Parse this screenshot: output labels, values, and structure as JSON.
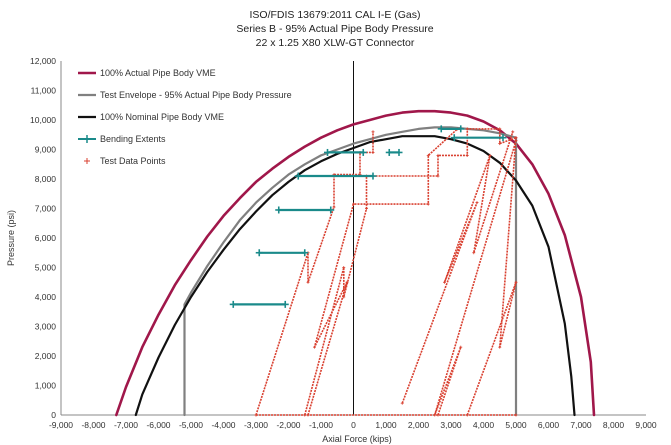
{
  "chart_data": {
    "type": "line",
    "title": "ISO/FDIS 13679:2011 CAL I-E (Gas)",
    "subtitle": "Series B - 95% Actual Pipe Body Pressure",
    "subtitle2": "22 x 1.25 X80 XLW-GT Connector",
    "xlabel": "Axial Force (kips)",
    "ylabel": "Pressure (psi)",
    "xlim": [
      -9000,
      9000
    ],
    "ylim": [
      0,
      12000
    ],
    "x_ticks": [
      "-9,000",
      "-8,000",
      "-7,000",
      "-6,000",
      "-5,000",
      "-4,000",
      "-3,000",
      "-2,000",
      "-1,000",
      "0",
      "1,000",
      "2,000",
      "3,000",
      "4,000",
      "5,000",
      "6,000",
      "7,000",
      "8,000",
      "9,000"
    ],
    "y_ticks": [
      "0",
      "1,000",
      "2,000",
      "3,000",
      "4,000",
      "5,000",
      "6,000",
      "7,000",
      "8,000",
      "9,000",
      "10,000",
      "11,000",
      "12,000"
    ],
    "grid": false,
    "legend_position": "top-left",
    "series": [
      {
        "name": "100% Actual Pipe Body VME",
        "color": "#a0174a",
        "x": [
          -7300,
          -7000,
          -6500,
          -6000,
          -5500,
          -5000,
          -4500,
          -4000,
          -3500,
          -3000,
          -2500,
          -2000,
          -1500,
          -1000,
          -500,
          0,
          500,
          1000,
          1500,
          2000,
          2500,
          3000,
          3500,
          4000,
          4500,
          5000,
          5500,
          6000,
          6500,
          7000,
          7300,
          7400
        ],
        "y": [
          0,
          950,
          2300,
          3400,
          4400,
          5250,
          6050,
          6750,
          7350,
          7900,
          8350,
          8750,
          9100,
          9400,
          9650,
          9850,
          10000,
          10150,
          10250,
          10300,
          10300,
          10250,
          10150,
          9950,
          9650,
          9200,
          8500,
          7500,
          6100,
          4000,
          1800,
          0
        ]
      },
      {
        "name": "Test Envelope - 95% Actual Pipe Body Pressure",
        "color": "#808080",
        "x": [
          -5200,
          -5200,
          -5000,
          -4500,
          -4000,
          -3500,
          -3000,
          -2500,
          -2000,
          -1500,
          -1000,
          -500,
          0,
          500,
          1000,
          1500,
          2000,
          2500,
          3000,
          3500,
          4000,
          4500,
          5000,
          5000
        ],
        "y": [
          0,
          3750,
          4150,
          5050,
          5850,
          6600,
          7200,
          7700,
          8150,
          8500,
          8800,
          9000,
          9200,
          9350,
          9500,
          9600,
          9700,
          9750,
          9750,
          9700,
          9650,
          9550,
          9400,
          0
        ]
      },
      {
        "name": "100% Nominal Pipe Body VME",
        "color": "#111111",
        "x": [
          -6700,
          -6500,
          -6000,
          -5500,
          -5000,
          -4500,
          -4000,
          -3500,
          -3000,
          -2500,
          -2000,
          -1500,
          -1000,
          -500,
          0,
          500,
          1000,
          1500,
          2000,
          2500,
          3000,
          3500,
          4000,
          4500,
          5000,
          5500,
          6000,
          6500,
          6700,
          6800
        ],
        "y": [
          0,
          700,
          1950,
          3050,
          4000,
          4850,
          5600,
          6300,
          6900,
          7450,
          7900,
          8300,
          8600,
          8850,
          9050,
          9250,
          9350,
          9450,
          9450,
          9450,
          9350,
          9200,
          8950,
          8550,
          7950,
          7100,
          5700,
          3100,
          1300,
          0
        ]
      },
      {
        "name": "Bending Extents",
        "color": "#1a8a8a",
        "segments": [
          {
            "x": [
              -3700,
              -2100
            ],
            "y": [
              3750,
              3750
            ]
          },
          {
            "x": [
              -2900,
              -1500
            ],
            "y": [
              5500,
              5500
            ]
          },
          {
            "x": [
              -2300,
              -700
            ],
            "y": [
              6950,
              6950
            ]
          },
          {
            "x": [
              -1700,
              600
            ],
            "y": [
              8100,
              8100
            ]
          },
          {
            "x": [
              -800,
              300
            ],
            "y": [
              8900,
              8900
            ]
          },
          {
            "x": [
              1100,
              1400
            ],
            "y": [
              8900,
              8900
            ]
          },
          {
            "x": [
              2700,
              3300
            ],
            "y": [
              9700,
              9700
            ]
          },
          {
            "x": [
              3100,
              4600
            ],
            "y": [
              9400,
              9400
            ]
          }
        ]
      },
      {
        "name": "Test Data Points",
        "color": "#d94030",
        "paths": [
          {
            "x": [
              -3000,
              -1400,
              -1400,
              -600,
              -600,
              200,
              200,
              600,
              600
            ],
            "y": [
              0,
              5500,
              4500,
              7050,
              8150,
              8150,
              8900,
              8900,
              9600
            ]
          },
          {
            "x": [
              -1500,
              -300,
              -300,
              400,
              400,
              2600,
              2600,
              3500,
              3500,
              4500,
              4500,
              5000
            ],
            "y": [
              0,
              5000,
              4000,
              7000,
              8100,
              8100,
              8800,
              8800,
              9700,
              9700,
              9200,
              9400
            ]
          },
          {
            "x": [
              -1400,
              -200,
              -1200,
              0,
              0,
              2300,
              2300,
              3200
            ],
            "y": [
              0,
              4500,
              2300,
              7150,
              7150,
              7150,
              8800,
              9700
            ]
          },
          {
            "x": [
              1500,
              3800,
              2800,
              4200,
              3700,
              4900
            ],
            "y": [
              400,
              7200,
              4500,
              8800,
              5500,
              9600
            ]
          },
          {
            "x": [
              2600,
              3300,
              2500,
              5000
            ],
            "y": [
              0,
              2300,
              0,
              9300
            ]
          },
          {
            "x": [
              3500,
              5000,
              4500,
              5000
            ],
            "y": [
              0,
              4500,
              2300,
              9400
            ]
          },
          {
            "x": [
              -3000,
              5000
            ],
            "y": [
              0,
              0
            ]
          }
        ]
      }
    ]
  }
}
